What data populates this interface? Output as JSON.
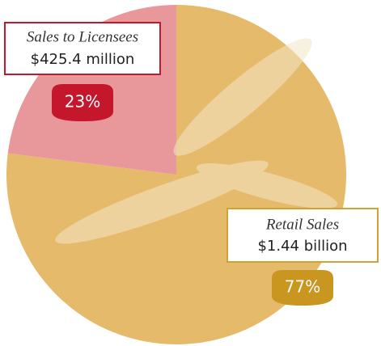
{
  "chart_data": {
    "type": "pie",
    "categories": [
      "Sales to Licensees",
      "Retail Sales"
    ],
    "values": [
      23,
      77
    ],
    "value_labels": [
      "23%",
      "77%"
    ],
    "amounts": [
      "$425.4 million",
      "$1.44 billion"
    ],
    "colors": [
      "#e8979b",
      "#e6ba6b"
    ]
  }
}
